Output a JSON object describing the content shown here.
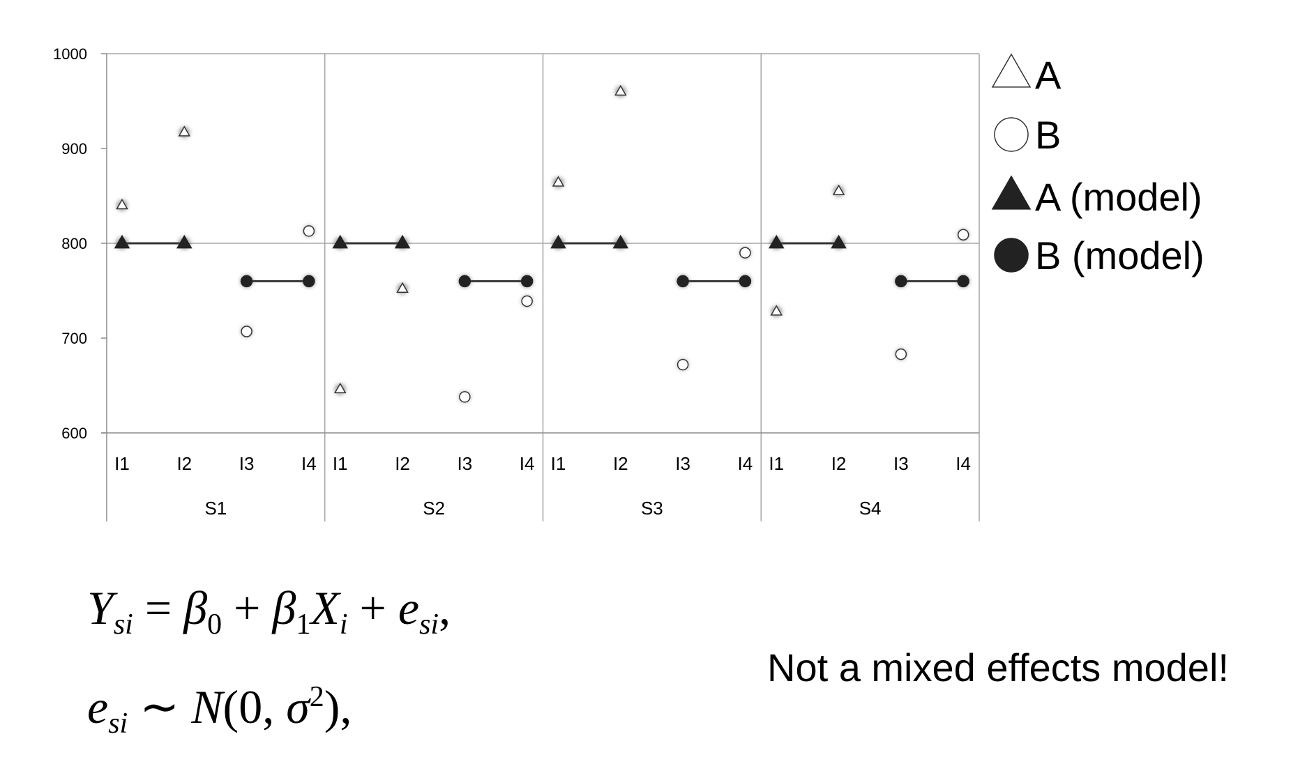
{
  "chart_data": {
    "type": "scatter",
    "ylim": [
      600,
      1000
    ],
    "yticks": [
      600,
      700,
      800,
      900,
      1000
    ],
    "groups": [
      "S1",
      "S2",
      "S3",
      "S4"
    ],
    "items": [
      "I1",
      "I2",
      "I3",
      "I4"
    ],
    "grid": "horizontal at 800; vertical group separators",
    "legend_position": "right",
    "series": [
      {
        "name": "A",
        "marker": "open-triangle",
        "x_items": [
          "I1",
          "I2"
        ],
        "values": {
          "S1": [
            840,
            917
          ],
          "S2": [
            646,
            752
          ],
          "S3": [
            864,
            960
          ],
          "S4": [
            728,
            855
          ]
        }
      },
      {
        "name": "B",
        "marker": "open-circle",
        "x_items": [
          "I3",
          "I4"
        ],
        "values": {
          "S1": [
            707,
            813
          ],
          "S2": [
            638,
            739
          ],
          "S3": [
            672,
            790
          ],
          "S4": [
            683,
            809
          ]
        }
      },
      {
        "name": "A (model)",
        "marker": "filled-triangle",
        "x_items": [
          "I1",
          "I2"
        ],
        "values": {
          "S1": [
            800,
            800
          ],
          "S2": [
            800,
            800
          ],
          "S3": [
            800,
            800
          ],
          "S4": [
            800,
            800
          ]
        }
      },
      {
        "name": "B (model)",
        "marker": "filled-circle",
        "x_items": [
          "I3",
          "I4"
        ],
        "values": {
          "S1": [
            760,
            760
          ],
          "S2": [
            760,
            760
          ],
          "S3": [
            760,
            760
          ],
          "S4": [
            760,
            760
          ]
        }
      }
    ]
  },
  "formula": {
    "line1": {
      "Y": "Y",
      "si1": "si",
      "eq": " = ",
      "b0": "β",
      "sub0": "0",
      "plus1": " + ",
      "b1": "β",
      "sub1": "1",
      "X": "X",
      "subi": "i",
      "plus2": " + ",
      "e": "e",
      "si2": "si",
      "comma": ","
    },
    "line2": {
      "e": "e",
      "si": "si",
      "sim": " ∼ ",
      "N": "N",
      "open": "(",
      "zero": "0",
      "comma": ", ",
      "sigma": "σ",
      "sq": "2",
      "close": "),"
    }
  },
  "note": "Not a mixed effects model!"
}
